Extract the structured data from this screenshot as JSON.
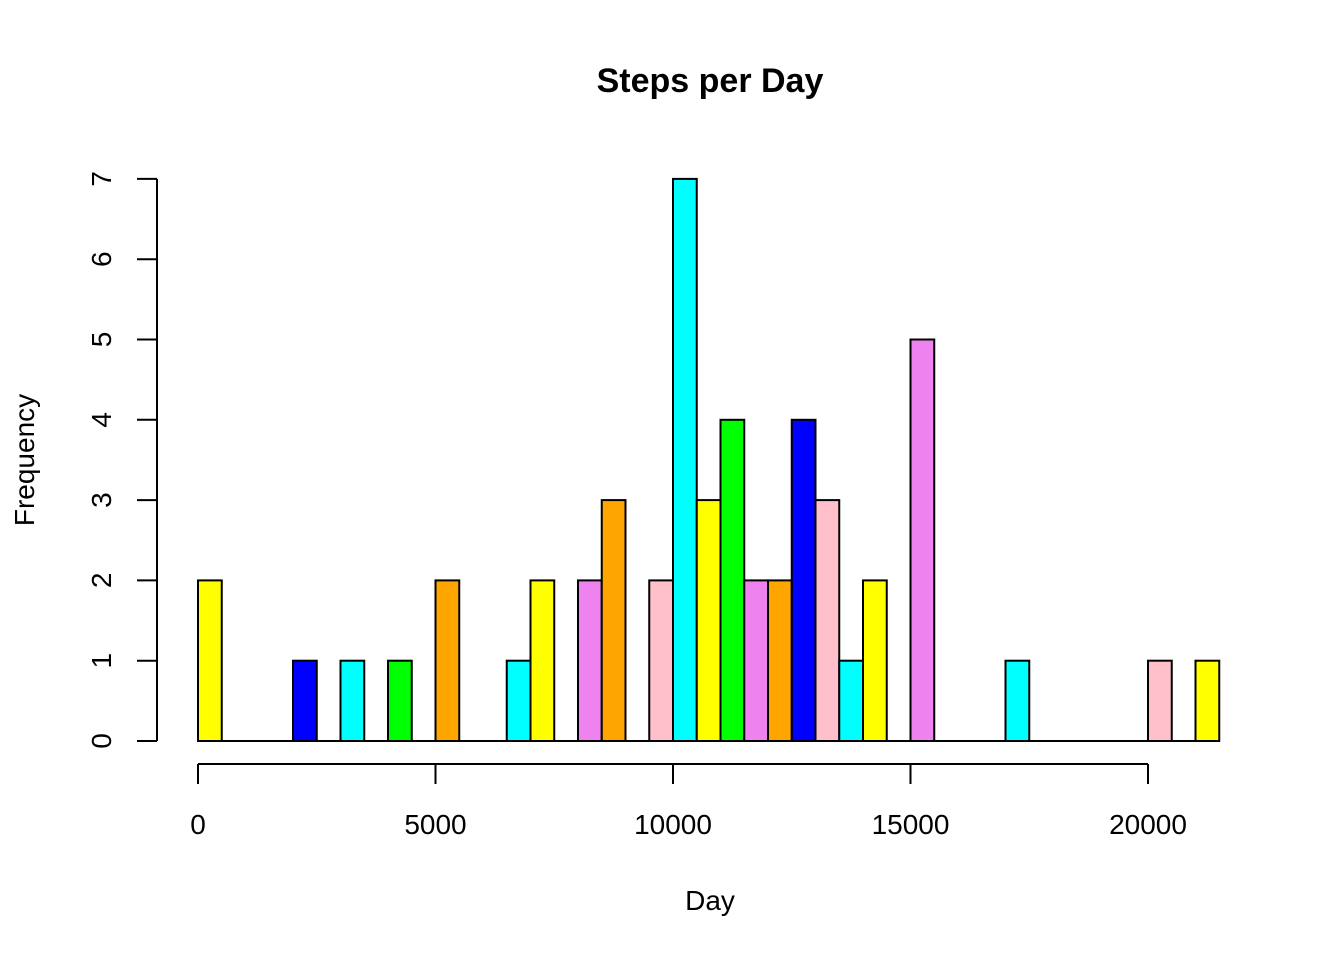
{
  "chart_data": {
    "type": "bar",
    "title": "Steps per Day",
    "xlabel": "Day",
    "ylabel": "Frequency",
    "xlim": [
      0,
      21500
    ],
    "ylim": [
      0,
      7
    ],
    "bin_width": 500,
    "x_ticks": [
      0,
      5000,
      10000,
      15000,
      20000
    ],
    "y_ticks": [
      0,
      1,
      2,
      3,
      4,
      5,
      6,
      7
    ],
    "grid": false,
    "bars": [
      {
        "x0": 0,
        "x1": 500,
        "value": 2,
        "color": "#FFFF00"
      },
      {
        "x0": 2000,
        "x1": 2500,
        "value": 1,
        "color": "#0000FF"
      },
      {
        "x0": 3000,
        "x1": 3500,
        "value": 1,
        "color": "#00FFFF"
      },
      {
        "x0": 4000,
        "x1": 4500,
        "value": 1,
        "color": "#00FF00"
      },
      {
        "x0": 5000,
        "x1": 5500,
        "value": 2,
        "color": "#FFA500"
      },
      {
        "x0": 6500,
        "x1": 7000,
        "value": 1,
        "color": "#00FFFF"
      },
      {
        "x0": 7000,
        "x1": 7500,
        "value": 2,
        "color": "#FFFF00"
      },
      {
        "x0": 8000,
        "x1": 8500,
        "value": 2,
        "color": "#EE82EE"
      },
      {
        "x0": 8500,
        "x1": 9000,
        "value": 3,
        "color": "#FFA500"
      },
      {
        "x0": 9500,
        "x1": 10000,
        "value": 2,
        "color": "#FFC0CB"
      },
      {
        "x0": 10000,
        "x1": 10500,
        "value": 7,
        "color": "#00FFFF"
      },
      {
        "x0": 10500,
        "x1": 11000,
        "value": 3,
        "color": "#FFFF00"
      },
      {
        "x0": 11000,
        "x1": 11500,
        "value": 4,
        "color": "#00FF00"
      },
      {
        "x0": 11500,
        "x1": 12000,
        "value": 2,
        "color": "#EE82EE"
      },
      {
        "x0": 12000,
        "x1": 12500,
        "value": 2,
        "color": "#FFA500"
      },
      {
        "x0": 12500,
        "x1": 13000,
        "value": 4,
        "color": "#0000FF"
      },
      {
        "x0": 13000,
        "x1": 13500,
        "value": 3,
        "color": "#FFC0CB"
      },
      {
        "x0": 13500,
        "x1": 14000,
        "value": 1,
        "color": "#00FFFF"
      },
      {
        "x0": 14000,
        "x1": 14500,
        "value": 2,
        "color": "#FFFF00"
      },
      {
        "x0": 15000,
        "x1": 15500,
        "value": 5,
        "color": "#EE82EE"
      },
      {
        "x0": 17000,
        "x1": 17500,
        "value": 1,
        "color": "#00FFFF"
      },
      {
        "x0": 20000,
        "x1": 20500,
        "value": 1,
        "color": "#FFC0CB"
      },
      {
        "x0": 21000,
        "x1": 21500,
        "value": 1,
        "color": "#FFFF00"
      }
    ]
  }
}
